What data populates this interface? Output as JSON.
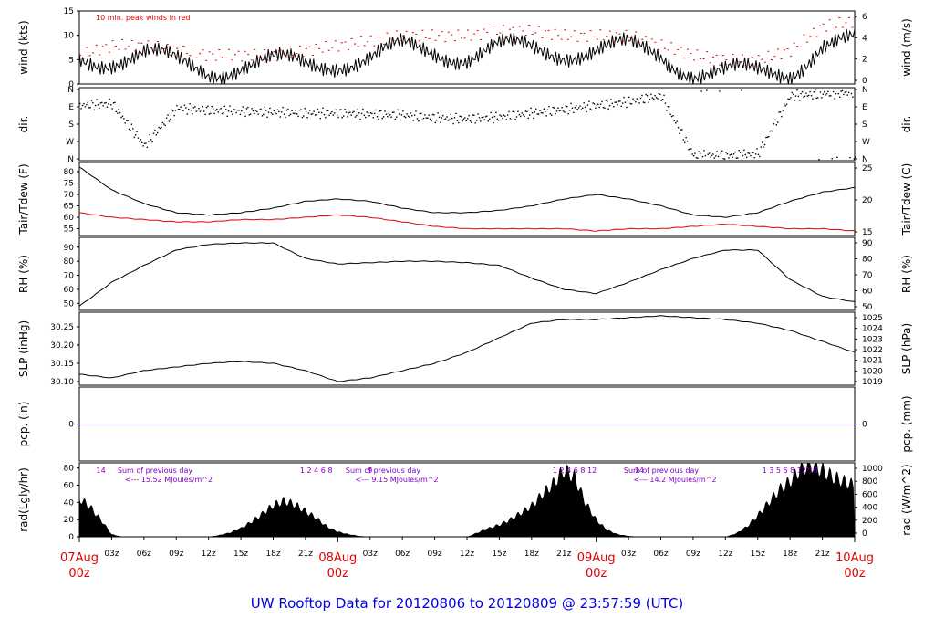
{
  "title": "UW Rooftop Data for 20120806  to  20120809 @ 23:57:59  (UTC)",
  "chart_data": [
    {
      "id": "wind",
      "type": "line",
      "ylabel_left": "wind (kts)",
      "ylabel_right": "wind (m/s)",
      "annotation": "10 min. peak winds in red",
      "ylim": [
        0,
        15
      ],
      "y_ticks_left": [
        "0",
        "5",
        "10",
        "15"
      ],
      "y_ticks_right": [
        "0",
        "2",
        "4",
        "6"
      ],
      "x_hours": [
        0,
        3,
        6,
        9,
        12,
        15,
        18,
        21,
        24,
        27,
        30,
        33,
        36,
        39,
        42,
        45,
        48,
        51,
        54,
        57,
        60,
        63,
        66,
        69,
        72
      ],
      "series": [
        {
          "role": "mean",
          "color": "#000000",
          "values": [
            5,
            5.5,
            6,
            4,
            3,
            4,
            4,
            4,
            5,
            5,
            7,
            7,
            6,
            7,
            7,
            7,
            7,
            7,
            6,
            3,
            2,
            2,
            3,
            8,
            8
          ]
        },
        {
          "role": "peak",
          "color": "#e00000",
          "values": [
            6,
            8,
            8,
            7,
            6,
            6,
            6,
            7,
            8,
            9,
            10,
            10,
            10,
            11,
            11,
            10,
            10,
            10,
            8,
            6,
            5,
            5,
            7,
            12,
            13
          ]
        }
      ]
    },
    {
      "id": "dir",
      "type": "scatter",
      "ylabel_left": "dir.",
      "ylabel_right": "dir.",
      "y_ticks_left": [
        "N",
        "W",
        "S",
        "E",
        "N"
      ],
      "y_ticks_right": [
        "N",
        "W",
        "S",
        "E",
        "N"
      ],
      "ylim": [
        0,
        360
      ],
      "x_hours": [
        0,
        3,
        6,
        9,
        12,
        15,
        18,
        21,
        24,
        27,
        30,
        33,
        36,
        39,
        42,
        45,
        48,
        51,
        54,
        57,
        60,
        63,
        66,
        69,
        72
      ],
      "values": [
        280,
        290,
        70,
        265,
        255,
        250,
        245,
        240,
        240,
        235,
        230,
        215,
        210,
        220,
        240,
        260,
        280,
        300,
        330,
        20,
        20,
        30,
        330,
        340,
        350
      ]
    },
    {
      "id": "temp",
      "type": "line",
      "ylabel_left": "Tair/Tdew (F)",
      "ylabel_right": "Tair/Tdew (C)",
      "ylim": [
        52,
        84
      ],
      "y_ticks_left": [
        "55",
        "60",
        "65",
        "70",
        "75",
        "80"
      ],
      "y_ticks_right": [
        "15",
        "20",
        "25"
      ],
      "x_hours": [
        0,
        3,
        6,
        9,
        12,
        15,
        18,
        21,
        24,
        27,
        30,
        33,
        36,
        39,
        42,
        45,
        48,
        51,
        54,
        57,
        60,
        63,
        66,
        69,
        72
      ],
      "series": [
        {
          "name": "Tair",
          "color": "#000000",
          "values": [
            82,
            72,
            66,
            62,
            61,
            62,
            64,
            67,
            68,
            67,
            64,
            62,
            62,
            63,
            65,
            68,
            70,
            68,
            65,
            61,
            60,
            62,
            67,
            71,
            73
          ]
        },
        {
          "name": "Tdew",
          "color": "#e00000",
          "values": [
            62,
            60,
            59,
            58,
            58,
            59,
            59,
            60,
            61,
            60,
            58,
            56,
            55,
            55,
            55,
            55,
            54,
            55,
            55,
            56,
            57,
            56,
            55,
            55,
            54
          ]
        }
      ]
    },
    {
      "id": "rh",
      "type": "line",
      "ylabel_left": "RH (%)",
      "ylabel_right": "RH (%)",
      "ylim": [
        45,
        97
      ],
      "y_ticks_left": [
        "50",
        "60",
        "70",
        "80",
        "90"
      ],
      "y_ticks_right": [
        "50",
        "60",
        "70",
        "80",
        "90"
      ],
      "x_hours": [
        0,
        3,
        6,
        9,
        12,
        15,
        18,
        21,
        24,
        27,
        30,
        33,
        36,
        39,
        42,
        45,
        48,
        51,
        54,
        57,
        60,
        63,
        66,
        69,
        72
      ],
      "values": [
        48,
        65,
        77,
        88,
        92,
        93,
        93,
        82,
        78,
        79,
        80,
        80,
        79,
        77,
        68,
        60,
        57,
        65,
        74,
        82,
        88,
        88,
        67,
        55,
        51
      ]
    },
    {
      "id": "slp",
      "type": "line",
      "ylabel_left": "SLP (inHg)",
      "ylabel_right": "SLP (hPa)",
      "ylim": [
        30.09,
        30.29
      ],
      "y_ticks_left": [
        "30.10",
        "30.15",
        "30.20",
        "30.25"
      ],
      "y_ticks_right": [
        "1019",
        "1020",
        "1021",
        "1022",
        "1023",
        "1024",
        "1025"
      ],
      "x_hours": [
        0,
        3,
        6,
        9,
        12,
        15,
        18,
        21,
        24,
        27,
        30,
        33,
        36,
        39,
        42,
        45,
        48,
        51,
        54,
        57,
        60,
        63,
        66,
        69,
        72
      ],
      "values": [
        30.12,
        30.11,
        30.13,
        30.14,
        30.15,
        30.155,
        30.15,
        30.13,
        30.1,
        30.11,
        30.13,
        30.15,
        30.18,
        30.22,
        30.26,
        30.27,
        30.27,
        30.275,
        30.28,
        30.275,
        30.27,
        30.26,
        30.24,
        30.21,
        30.18
      ]
    },
    {
      "id": "pcp",
      "type": "line",
      "ylabel_left": "pcp. (in)",
      "ylabel_right": "pcp. (mm)",
      "ylim": [
        -1,
        1
      ],
      "y_ticks_left": [
        "0"
      ],
      "y_ticks_right": [
        "0"
      ],
      "x_hours": [
        0,
        72
      ],
      "values": [
        0,
        0
      ]
    },
    {
      "id": "rad",
      "type": "area",
      "ylabel_left": "rad(Lgly/hr)",
      "ylabel_right": "rad (W/m^2)",
      "ylim": [
        0,
        86
      ],
      "y_ticks_left": [
        "0",
        "20",
        "40",
        "60",
        "80"
      ],
      "y_ticks_right": [
        "0",
        "200",
        "400",
        "600",
        "800",
        "1000"
      ],
      "x_hours": [
        0,
        1,
        2,
        3,
        4,
        5,
        12,
        13,
        14,
        15,
        16,
        17,
        18,
        19,
        20,
        21,
        22,
        23,
        24,
        25,
        26,
        27,
        28,
        36,
        37,
        38,
        39,
        40,
        41,
        42,
        43,
        44,
        45,
        46,
        47,
        48,
        49,
        50,
        51,
        52,
        60,
        61,
        62,
        63,
        64,
        65,
        66,
        67,
        68,
        69,
        70,
        71,
        72
      ],
      "values": [
        45,
        35,
        20,
        3,
        0,
        0,
        0,
        2,
        5,
        10,
        18,
        27,
        37,
        42,
        38,
        30,
        22,
        12,
        6,
        3,
        1,
        0,
        0,
        0,
        5,
        10,
        14,
        20,
        28,
        36,
        50,
        62,
        78,
        70,
        40,
        20,
        8,
        3,
        1,
        0,
        0,
        4,
        12,
        25,
        40,
        55,
        65,
        80,
        85,
        78,
        70,
        65,
        60
      ],
      "day_annotations": [
        {
          "hours_text": "14",
          "sum_label": "Sum of previous day",
          "sum_value": "<--- 15.52 MJoules/m^2"
        },
        {
          "hours_text": "1  2  4  6  8",
          "sum_label": "Sum of previous day",
          "sum_value": "<--- 9.15 MJoules/m^2"
        },
        {
          "hours_text": "9",
          "sum_label": "",
          "sum_value": ""
        },
        {
          "hours_text": "1  2  4  6  8  12",
          "sum_label": "Sum of previous day",
          "sum_value": "<--- 14.2 MJoules/m^2"
        },
        {
          "hours_text": "14",
          "sum_label": "",
          "sum_value": ""
        },
        {
          "hours_text": "1  3  5  6  8  12  16",
          "sum_label": "",
          "sum_value": ""
        }
      ]
    }
  ],
  "x_axis": {
    "hour_ticks": [
      "03z",
      "06z",
      "09z",
      "12z",
      "15z",
      "18z",
      "21z",
      "03z",
      "06z",
      "09z",
      "12z",
      "15z",
      "18z",
      "21z",
      "03z",
      "06z",
      "09z",
      "12z",
      "15z",
      "18z",
      "21z"
    ],
    "day_labels": [
      {
        "date": "07Aug",
        "time": "00z"
      },
      {
        "date": "08Aug",
        "time": "00z"
      },
      {
        "date": "09Aug",
        "time": "00z"
      },
      {
        "date": "10Aug",
        "time": "00z"
      }
    ],
    "colors": {
      "day_label": "#e00000",
      "title": "#0000e0",
      "annotation": "#8000c0",
      "pcp_line": "#0000c0"
    }
  }
}
